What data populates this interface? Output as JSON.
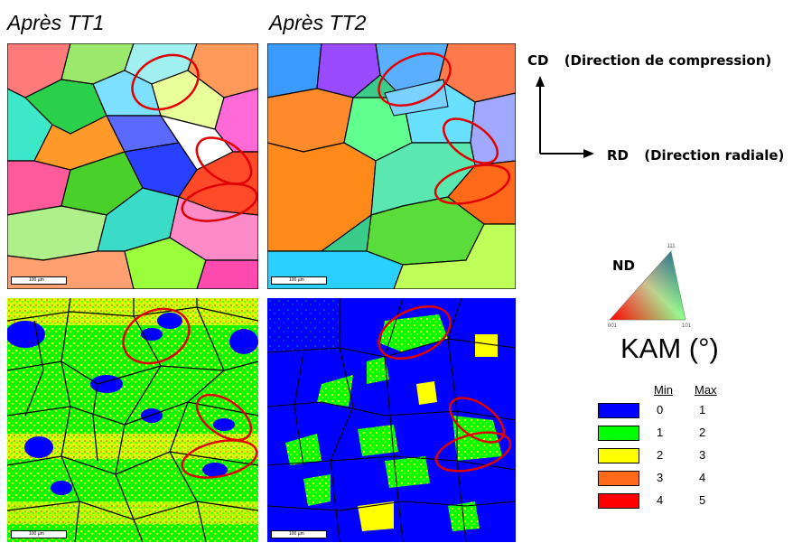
{
  "columns": {
    "tt1_title": "Après TT1",
    "tt2_title": "Après TT2"
  },
  "axes": {
    "cd_label": "CD",
    "cd_desc": "(Direction de compression)",
    "rd_label": "RD",
    "rd_desc": "(Direction radiale)"
  },
  "ipf_legend": {
    "nd_label": "ND",
    "corner_top": "111",
    "corner_left": "001",
    "corner_right": "101"
  },
  "scalebar_text": "100 µm",
  "kam_legend": {
    "title": "KAM (°)",
    "min_header": "Min",
    "max_header": "Max",
    "rows": [
      {
        "min": "0",
        "max": "1",
        "color": "#0000ff"
      },
      {
        "min": "1",
        "max": "2",
        "color": "#00ff00"
      },
      {
        "min": "2",
        "max": "3",
        "color": "#ffff00"
      },
      {
        "min": "3",
        "max": "4",
        "color": "#ff6a1a"
      },
      {
        "min": "4",
        "max": "5",
        "color": "#ff0000"
      }
    ]
  },
  "highlight_color": "#e00000"
}
